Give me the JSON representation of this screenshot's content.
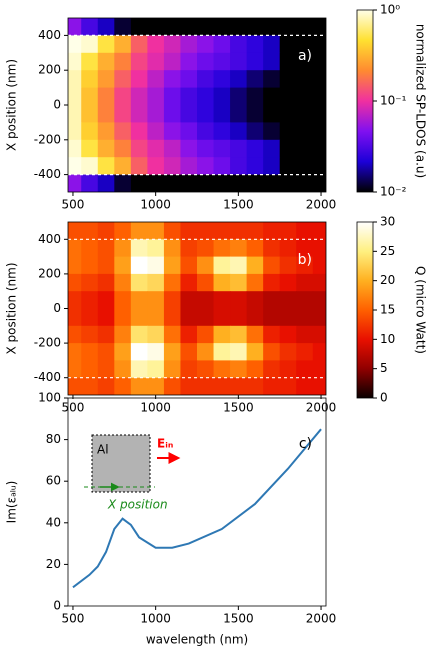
{
  "chart_data": [
    {
      "type": "heatmap",
      "annotation": "a)",
      "ylabel": "X position (nm)",
      "x": [
        500,
        600,
        700,
        800,
        900,
        1000,
        1100,
        1200,
        1300,
        1400,
        1500,
        1600,
        1700,
        1800,
        1900,
        2000
      ],
      "y": [
        450,
        350,
        250,
        150,
        50,
        -50,
        -150,
        -250,
        -350,
        -450
      ],
      "z": [
        [
          0.05,
          0.03,
          0.02,
          0.012,
          0.01,
          0.008,
          0.006,
          0.005,
          0.005,
          0.005,
          0.005,
          0.005,
          0.005,
          0.005,
          0.005,
          0.005
        ],
        [
          1,
          0.9,
          0.5,
          0.3,
          0.15,
          0.1,
          0.08,
          0.06,
          0.05,
          0.04,
          0.03,
          0.025,
          0.02,
          0.005,
          0.005,
          0.005
        ],
        [
          0.9,
          0.5,
          0.3,
          0.2,
          0.12,
          0.09,
          0.07,
          0.05,
          0.04,
          0.035,
          0.03,
          0.025,
          0.02,
          0.005,
          0.005,
          0.005
        ],
        [
          0.8,
          0.4,
          0.25,
          0.15,
          0.1,
          0.07,
          0.05,
          0.04,
          0.03,
          0.025,
          0.02,
          0.015,
          0.012,
          0.005,
          0.005,
          0.005
        ],
        [
          0.8,
          0.35,
          0.2,
          0.12,
          0.08,
          0.06,
          0.04,
          0.03,
          0.025,
          0.02,
          0.015,
          0.012,
          0.01,
          0.005,
          0.005,
          0.005
        ],
        [
          0.8,
          0.35,
          0.2,
          0.12,
          0.08,
          0.06,
          0.04,
          0.03,
          0.025,
          0.02,
          0.015,
          0.012,
          0.01,
          0.005,
          0.005,
          0.005
        ],
        [
          0.8,
          0.4,
          0.25,
          0.15,
          0.1,
          0.07,
          0.05,
          0.04,
          0.03,
          0.025,
          0.02,
          0.015,
          0.012,
          0.005,
          0.005,
          0.005
        ],
        [
          0.9,
          0.5,
          0.3,
          0.2,
          0.12,
          0.09,
          0.07,
          0.05,
          0.04,
          0.035,
          0.03,
          0.025,
          0.02,
          0.005,
          0.005,
          0.005
        ],
        [
          1,
          0.9,
          0.5,
          0.3,
          0.15,
          0.1,
          0.08,
          0.06,
          0.05,
          0.04,
          0.03,
          0.025,
          0.02,
          0.005,
          0.005,
          0.005
        ],
        [
          0.05,
          0.03,
          0.02,
          0.012,
          0.01,
          0.008,
          0.006,
          0.005,
          0.005,
          0.005,
          0.005,
          0.005,
          0.005,
          0.005,
          0.005,
          0.005
        ]
      ],
      "xlim": [
        470,
        2030
      ],
      "ylim": [
        -500,
        500
      ],
      "xticks": [
        500,
        1000,
        1500,
        2000
      ],
      "yticks": [
        -400,
        -200,
        0,
        200,
        400
      ],
      "hlines": [
        400,
        -400
      ],
      "colorbar": {
        "label": "normalized SP-LDOS (a.u)",
        "log": true,
        "lim": [
          0.01,
          1
        ],
        "ticks": [
          {
            "value": 0.01,
            "label": "10⁻²"
          },
          {
            "value": 0.1,
            "label": "10⁻¹"
          },
          {
            "value": 1,
            "label": "10⁰"
          }
        ],
        "colormap": [
          "#000000",
          "#1c00d8",
          "#8010f0",
          "#f030a0",
          "#ff8a30",
          "#ffe030",
          "#ffffe8"
        ]
      }
    },
    {
      "type": "heatmap",
      "annotation": "b)",
      "ylabel": "X position (nm)",
      "x": [
        500,
        600,
        700,
        800,
        900,
        1000,
        1100,
        1200,
        1300,
        1400,
        1500,
        1600,
        1700,
        1800,
        1900,
        2000
      ],
      "y": [
        450,
        350,
        250,
        150,
        50,
        -50,
        -150,
        -250,
        -350,
        -450
      ],
      "z": [
        [
          14,
          14,
          13,
          15,
          18,
          18,
          14,
          12,
          12,
          12,
          12,
          12,
          11,
          11,
          10,
          10
        ],
        [
          16,
          15,
          14,
          18,
          27,
          26,
          18,
          13,
          14,
          16,
          17,
          15,
          12,
          11,
          10,
          10
        ],
        [
          16,
          15,
          14,
          19,
          30,
          29,
          19,
          14,
          18,
          26,
          27,
          20,
          14,
          12,
          11,
          10
        ],
        [
          14,
          13,
          12,
          17,
          24,
          23,
          16,
          11,
          14,
          20,
          21,
          16,
          11,
          10,
          9,
          9
        ],
        [
          12,
          11,
          10,
          15,
          18,
          18,
          13,
          8,
          8,
          9,
          9,
          8,
          7,
          7,
          7,
          7
        ],
        [
          12,
          11,
          10,
          15,
          18,
          18,
          13,
          8,
          8,
          9,
          9,
          8,
          7,
          7,
          7,
          7
        ],
        [
          14,
          13,
          12,
          17,
          24,
          23,
          16,
          11,
          14,
          20,
          21,
          16,
          11,
          10,
          9,
          9
        ],
        [
          16,
          15,
          14,
          19,
          30,
          29,
          19,
          14,
          18,
          26,
          27,
          20,
          14,
          12,
          11,
          10
        ],
        [
          16,
          15,
          14,
          18,
          27,
          26,
          18,
          13,
          14,
          16,
          17,
          15,
          12,
          11,
          10,
          10
        ],
        [
          14,
          14,
          13,
          15,
          18,
          18,
          14,
          12,
          12,
          12,
          12,
          12,
          11,
          11,
          10,
          10
        ]
      ],
      "xlim": [
        470,
        2030
      ],
      "ylim": [
        -500,
        500
      ],
      "xticks": [
        500,
        1000,
        1500,
        2000
      ],
      "yticks": [
        -400,
        -200,
        0,
        200,
        400
      ],
      "hlines": [
        400,
        -400
      ],
      "colorbar": {
        "label": "Q (micro Watt)",
        "log": false,
        "lim": [
          0,
          30
        ],
        "ticks": [
          0,
          5,
          10,
          15,
          20,
          25,
          30
        ],
        "colormap": [
          "#0a0000",
          "#900000",
          "#e81000",
          "#ff6000",
          "#ffb020",
          "#fff080",
          "#ffffff"
        ]
      }
    },
    {
      "type": "line",
      "annotation": "c)",
      "ylabel": "Im(εₐₗᵤ)",
      "xlabel": "wavelength (nm)",
      "x": [
        500,
        600,
        650,
        700,
        750,
        800,
        850,
        900,
        1000,
        1100,
        1200,
        1400,
        1600,
        1800,
        2000
      ],
      "values": [
        9,
        15,
        19,
        26,
        37,
        42,
        39,
        33,
        28,
        28,
        30,
        37,
        49,
        66,
        85
      ],
      "color": "#2e78b4",
      "xlim": [
        470,
        2030
      ],
      "ylim": [
        0,
        100
      ],
      "xticks": [
        500,
        1000,
        1500,
        2000
      ],
      "yticks": [
        0,
        20,
        40,
        60,
        80,
        100
      ],
      "inset": {
        "material": "Al",
        "field": "Eᵢₙ",
        "position": "X position"
      }
    }
  ]
}
